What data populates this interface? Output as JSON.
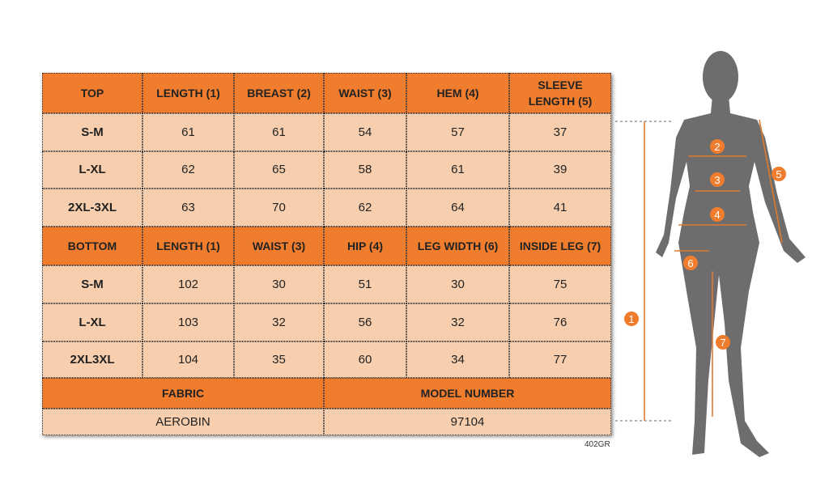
{
  "table": {
    "top": {
      "header": [
        "TOP",
        "LENGTH (1)",
        "BREAST (2)",
        "WAIST (3)",
        "HEM (4)",
        "SLEEVE LENGTH (5)"
      ],
      "rows": [
        [
          "S-M",
          61,
          61,
          54,
          57,
          37
        ],
        [
          "L-XL",
          62,
          65,
          58,
          61,
          39
        ],
        [
          "2XL-3XL",
          63,
          70,
          62,
          64,
          41
        ]
      ]
    },
    "bottom": {
      "header": [
        "BOTTOM",
        "LENGTH (1)",
        "WAIST (3)",
        "HIP (4)",
        "LEG WIDTH (6)",
        "INSIDE LEG (7)"
      ],
      "rows": [
        [
          "S-M",
          102,
          30,
          51,
          30,
          75
        ],
        [
          "L-XL",
          103,
          32,
          56,
          32,
          76
        ],
        [
          "2XL3XL",
          104,
          35,
          60,
          34,
          77
        ]
      ]
    },
    "info": {
      "header": [
        "FABRIC",
        "MODEL NUMBER"
      ],
      "values": [
        "AEROBIN",
        97104
      ]
    }
  },
  "code": "402GR",
  "figure": {
    "markers": [
      "1",
      "2",
      "3",
      "4",
      "5",
      "6",
      "7"
    ]
  }
}
